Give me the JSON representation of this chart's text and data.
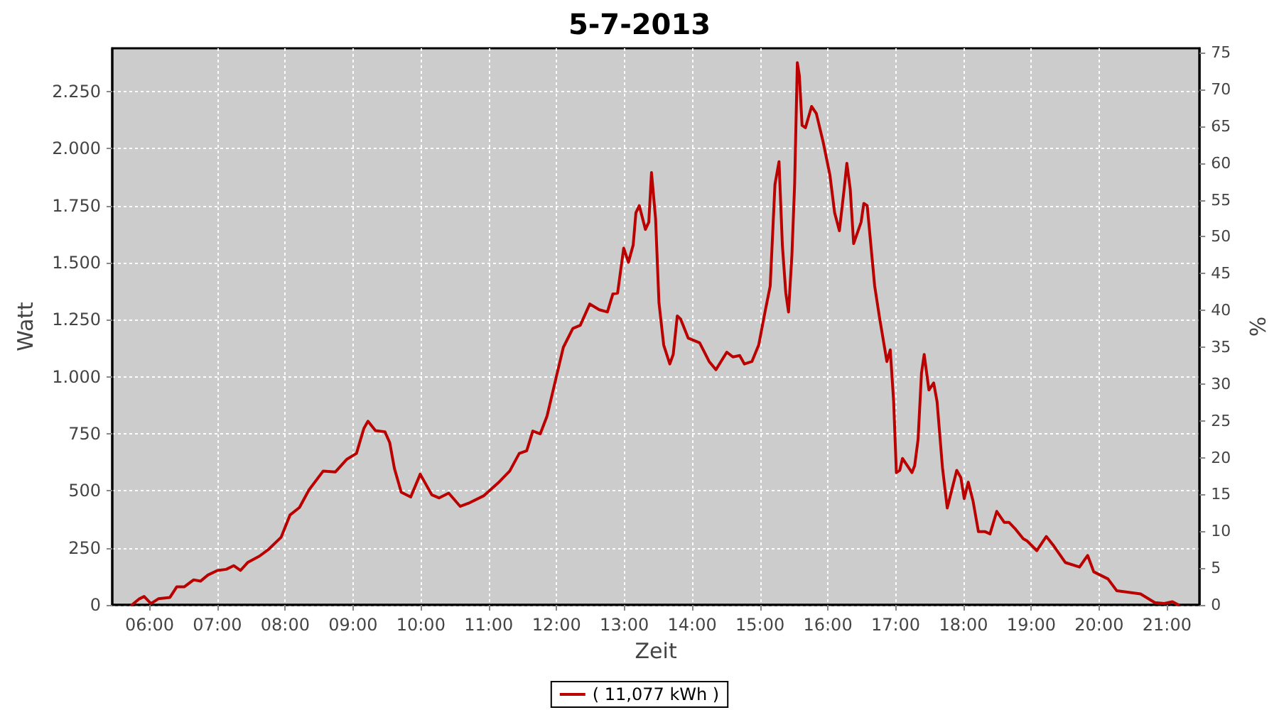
{
  "chart_data": {
    "type": "line",
    "title": "5-7-2013",
    "xlabel": "Zeit",
    "ylabel": "Watt",
    "y2label": "%",
    "xlim": [
      5.45,
      21.48
    ],
    "xticks": [
      {
        "value": 6,
        "label": "06:00"
      },
      {
        "value": 7,
        "label": "07:00"
      },
      {
        "value": 8,
        "label": "08:00"
      },
      {
        "value": 9,
        "label": "09:00"
      },
      {
        "value": 10,
        "label": "10:00"
      },
      {
        "value": 11,
        "label": "11:00"
      },
      {
        "value": 12,
        "label": "12:00"
      },
      {
        "value": 13,
        "label": "13:00"
      },
      {
        "value": 14,
        "label": "14:00"
      },
      {
        "value": 15,
        "label": "15:00"
      },
      {
        "value": 16,
        "label": "16:00"
      },
      {
        "value": 17,
        "label": "17:00"
      },
      {
        "value": 18,
        "label": "18:00"
      },
      {
        "value": 19,
        "label": "19:00"
      },
      {
        "value": 20,
        "label": "20:00"
      },
      {
        "value": 21,
        "label": "21:00"
      }
    ],
    "ylim": [
      0,
      2440
    ],
    "yticks": [
      0,
      250,
      500,
      750,
      {
        "value": 1000,
        "label": "1.000"
      },
      {
        "value": 1250,
        "label": "1.250"
      },
      {
        "value": 1500,
        "label": "1.500"
      },
      {
        "value": 1750,
        "label": "1.750"
      },
      {
        "value": 2000,
        "label": "2.000"
      },
      {
        "value": 2250,
        "label": "2.250"
      }
    ],
    "y2lim": [
      0,
      75.6
    ],
    "y2ticks": [
      0,
      5,
      10,
      15,
      20,
      25,
      30,
      35,
      40,
      45,
      50,
      55,
      60,
      65,
      70,
      75
    ],
    "grid": true,
    "legend": "bottom",
    "marker": "none",
    "line_style": "solid",
    "series": [
      {
        "name": "( 11,077 kWh )",
        "color": "#bb0000",
        "x": [
          5.74,
          5.85,
          5.92,
          6.02,
          6.13,
          6.3,
          6.4,
          6.51,
          6.65,
          6.75,
          6.86,
          7.0,
          7.13,
          7.24,
          7.34,
          7.45,
          7.62,
          7.76,
          7.94,
          8.07,
          8.21,
          8.35,
          8.56,
          8.74,
          8.91,
          9.05,
          9.16,
          9.22,
          9.33,
          9.47,
          9.54,
          9.61,
          9.71,
          9.85,
          9.99,
          10.16,
          10.27,
          10.41,
          10.58,
          10.72,
          10.93,
          11.14,
          11.31,
          11.45,
          11.56,
          11.65,
          11.76,
          11.86,
          12.0,
          12.1,
          12.24,
          12.35,
          12.49,
          12.63,
          12.75,
          12.83,
          12.9,
          12.99,
          13.06,
          13.13,
          13.17,
          13.22,
          13.31,
          13.36,
          13.4,
          13.46,
          13.51,
          13.58,
          13.67,
          13.72,
          13.78,
          13.83,
          13.94,
          14.11,
          14.25,
          14.35,
          14.51,
          14.6,
          14.7,
          14.77,
          14.88,
          14.98,
          15.08,
          15.15,
          15.22,
          15.28,
          15.33,
          15.38,
          15.42,
          15.47,
          15.51,
          15.55,
          15.58,
          15.62,
          15.67,
          15.76,
          15.83,
          15.93,
          16.03,
          16.1,
          16.17,
          16.24,
          16.28,
          16.33,
          16.38,
          16.49,
          16.53,
          16.58,
          16.69,
          16.76,
          16.87,
          16.92,
          16.97,
          17.01,
          17.06,
          17.1,
          17.17,
          17.24,
          17.28,
          17.33,
          17.38,
          17.42,
          17.49,
          17.56,
          17.61,
          17.69,
          17.76,
          17.83,
          17.9,
          17.96,
          18.01,
          18.07,
          18.14,
          18.22,
          18.32,
          18.39,
          18.49,
          18.6,
          18.67,
          18.77,
          18.88,
          18.94,
          19.08,
          19.22,
          19.33,
          19.5,
          19.71,
          19.83,
          19.92,
          20.13,
          20.26,
          20.61,
          20.82,
          20.96,
          21.08,
          21.17
        ],
        "values": [
          0,
          27,
          37,
          6,
          27,
          33,
          79,
          79,
          110,
          104,
          131,
          151,
          156,
          172,
          151,
          187,
          214,
          245,
          297,
          394,
          427,
          504,
          587,
          583,
          639,
          664,
          774,
          805,
          764,
          759,
          712,
          598,
          494,
          473,
          573,
          483,
          469,
          490,
          432,
          448,
          479,
          535,
          587,
          664,
          676,
          762,
          750,
          828,
          1004,
          1129,
          1212,
          1226,
          1319,
          1294,
          1284,
          1363,
          1367,
          1564,
          1502,
          1578,
          1719,
          1750,
          1646,
          1678,
          1895,
          1694,
          1325,
          1139,
          1056,
          1098,
          1267,
          1253,
          1170,
          1149,
          1067,
          1031,
          1108,
          1087,
          1093,
          1056,
          1067,
          1139,
          1294,
          1398,
          1843,
          1943,
          1574,
          1367,
          1284,
          1533,
          1843,
          2377,
          2320,
          2102,
          2092,
          2185,
          2154,
          2030,
          1885,
          1719,
          1640,
          1822,
          1936,
          1822,
          1584,
          1678,
          1760,
          1750,
          1398,
          1263,
          1067,
          1118,
          891,
          580,
          590,
          642,
          611,
          580,
          611,
          725,
          1015,
          1098,
          942,
          973,
          891,
          601,
          425,
          507,
          590,
          559,
          466,
          538,
          456,
          321,
          321,
          311,
          410,
          362,
          362,
          331,
          290,
          280,
          238,
          300,
          259,
          186,
          166,
          217,
          145,
          114,
          62,
          48,
          10,
          6,
          14,
          0
        ]
      }
    ]
  }
}
